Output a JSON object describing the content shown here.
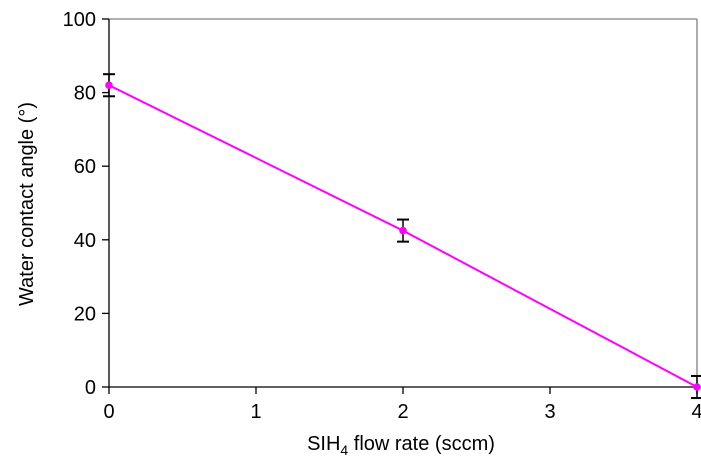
{
  "chart_data": {
    "type": "line",
    "title": "",
    "xlabel": "SIH4 flow rate (sccm)",
    "xlabel_parts": {
      "pre": "SIH",
      "sub": "4",
      "post": " flow rate (sccm)"
    },
    "ylabel": "Water contact angle (°)",
    "xlim": [
      0,
      4
    ],
    "ylim": [
      0,
      100
    ],
    "xticks": [
      0,
      1,
      2,
      3,
      4
    ],
    "yticks": [
      0,
      20,
      40,
      60,
      80,
      100
    ],
    "grid": false,
    "legend": "none",
    "series": [
      {
        "x": [
          0,
          2,
          4
        ],
        "y": [
          82,
          42.5,
          0
        ],
        "error": [
          3,
          3,
          3
        ],
        "color": "#ff00ff",
        "marker": "circle"
      }
    ],
    "colors": {
      "axis": "#808080",
      "text": "#000000",
      "errorbar": "#000000"
    }
  }
}
